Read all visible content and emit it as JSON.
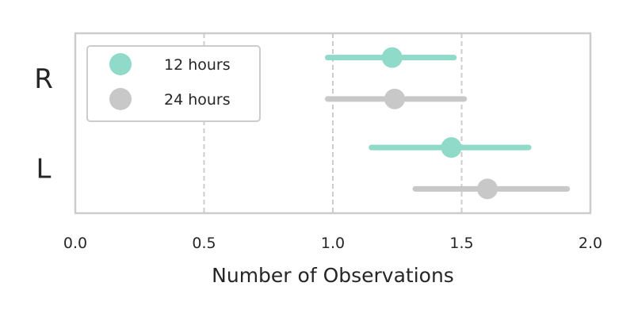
{
  "chart_data": {
    "type": "scatter",
    "orientation": "horizontal",
    "categories": [
      "R",
      "L"
    ],
    "series": [
      {
        "name": "12 hours",
        "color": "#8fdac8",
        "points": [
          {
            "category": "R",
            "value": 1.23,
            "ci": [
              0.98,
              1.47
            ]
          },
          {
            "category": "L",
            "value": 1.46,
            "ci": [
              1.15,
              1.76
            ]
          }
        ]
      },
      {
        "name": "24 hours",
        "color": "#c8c8c8",
        "points": [
          {
            "category": "R",
            "value": 1.24,
            "ci": [
              0.98,
              1.51
            ]
          },
          {
            "category": "L",
            "value": 1.6,
            "ci": [
              1.32,
              1.91
            ]
          }
        ]
      }
    ],
    "xlabel": "Number of Observations",
    "ylabel": "",
    "xlim": [
      0.0,
      2.0
    ],
    "xticks": [
      "0.0",
      "0.5",
      "1.0",
      "1.5",
      "2.0"
    ],
    "grid": "vertical dashed",
    "legend_position": "top-left"
  }
}
